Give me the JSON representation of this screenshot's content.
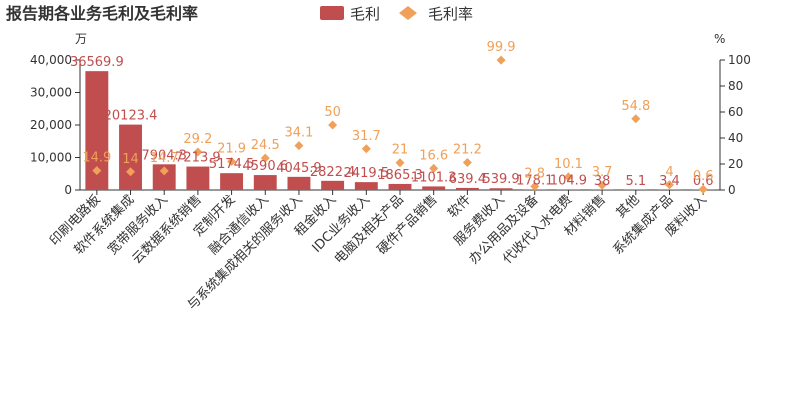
{
  "chart_data": {
    "type": "bar+scatter",
    "title": "报告期各业务毛利及毛利率",
    "legend": [
      {
        "name": "毛利",
        "marker": "bar",
        "color": "#c04e4e"
      },
      {
        "name": "毛利率",
        "marker": "diamond",
        "color": "#f0a058"
      }
    ],
    "legend_position": "top-center",
    "y_left_label": "万",
    "y_right_label": "%",
    "y_left_range": [
      0,
      40000
    ],
    "y_left_ticks": [
      "0",
      "10,000",
      "20,000",
      "30,000",
      "40,000"
    ],
    "y_left_tick_values": [
      0,
      10000,
      20000,
      30000,
      40000
    ],
    "y_right_range": [
      0,
      100
    ],
    "y_right_ticks": [
      "0",
      "20",
      "40",
      "60",
      "80",
      "100"
    ],
    "y_right_tick_values": [
      0,
      20,
      40,
      60,
      80,
      100
    ],
    "categories": [
      "印刷电路板",
      "软件系统集成",
      "宽带服务收入",
      "云数据系统销售",
      "定制开发",
      "融合通信收入",
      "与系统集成相关的服务收入",
      "租金收入",
      "IDC业务收入",
      "电脑及相关产品",
      "硬件产品销售",
      "软件",
      "服务费收入",
      "办公用品及设备",
      "代收代入水电费",
      "材料销售",
      "其他",
      "系统集成产品",
      "废料收入"
    ],
    "series": [
      {
        "name": "毛利",
        "type": "bar",
        "axis": "left",
        "values": [
          36569.9,
          20123.4,
          7904.3,
          7213.9,
          5174.5,
          4590.6,
          4045.9,
          2822.4,
          2419.5,
          1865.3,
          1101.3,
          639.4,
          539.9,
          178.1,
          104.9,
          38,
          5.1,
          3.4,
          0.6
        ],
        "labels": [
          "36569.9",
          "20123.4",
          "7904.3",
          "7213.9",
          "5174.5",
          "4590.6",
          "4045.9",
          "2822.4",
          "2419.5",
          "1865.3",
          "1101.3",
          "639.4",
          "539.9",
          "178.1",
          "104.9",
          "38",
          "5.1",
          "3.4",
          "0.6"
        ]
      },
      {
        "name": "毛利率",
        "type": "scatter",
        "axis": "right",
        "values": [
          14.9,
          14,
          14.7,
          29.2,
          21.9,
          24.5,
          34.1,
          50,
          31.7,
          21,
          16.6,
          21.2,
          99.9,
          2.8,
          10.1,
          3.7,
          54.8,
          4,
          0.6
        ],
        "labels": [
          "14.9",
          "14",
          "14.7",
          "29.2",
          "21.9",
          "24.5",
          "34.1",
          "50",
          "31.7",
          "21",
          "16.6",
          "21.2",
          "99.9",
          "2.8",
          "10.1",
          "3.7",
          "54.8",
          "4",
          "0.6"
        ]
      }
    ]
  }
}
